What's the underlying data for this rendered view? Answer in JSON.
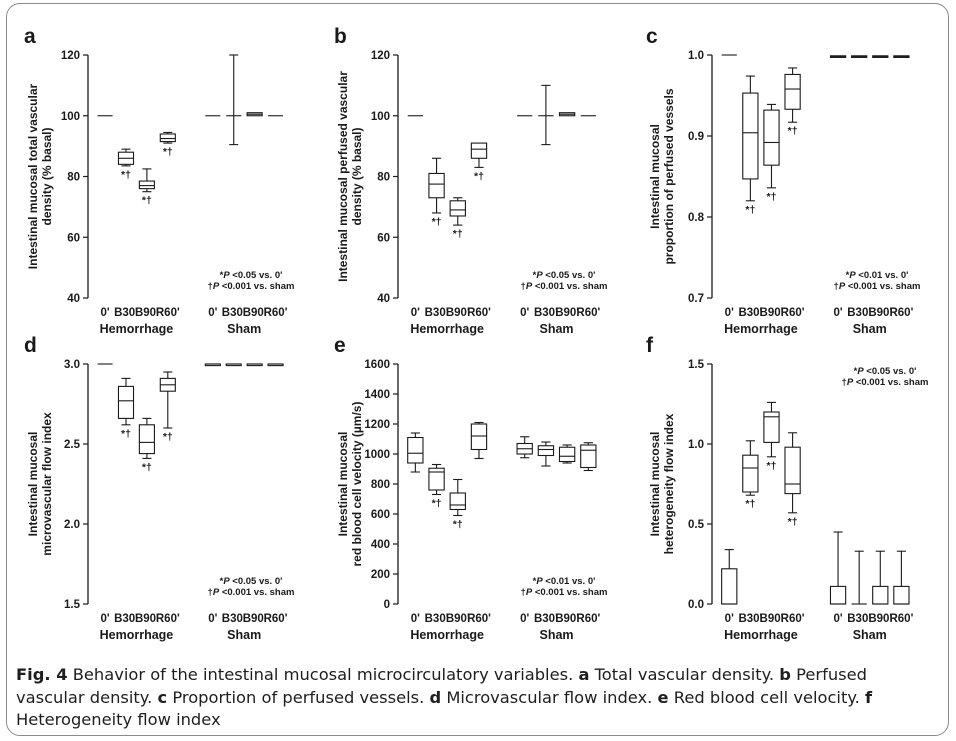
{
  "caption": {
    "fig_label": "Fig. 4",
    "intro": "Behavior of the intestinal mucosal microcirculatory variables.",
    "items": [
      {
        "letter": "a",
        "text": "Total vascular density."
      },
      {
        "letter": "b",
        "text": "Perfused vascular density."
      },
      {
        "letter": "c",
        "text": "Proportion of perfused vessels."
      },
      {
        "letter": "d",
        "text": "Microvascular flow index."
      },
      {
        "letter": "e",
        "text": "Red blood cell velocity."
      },
      {
        "letter": "f",
        "text": "Heterogeneity flow index"
      }
    ]
  },
  "chart_data": [
    {
      "panel": "a",
      "type": "box",
      "ylabel": [
        "Intestinal mucosal total vascular",
        "density (% basal)"
      ],
      "ylim": [
        40,
        120
      ],
      "yticks": [
        40,
        60,
        80,
        100,
        120
      ],
      "ytick_labels": [
        "40",
        "60",
        "80",
        "100",
        "120"
      ],
      "categories": [
        "0'",
        "B30'",
        "B90'",
        "R60'",
        "0'",
        "B30'",
        "B90'",
        "R60'"
      ],
      "groups": [
        "Hemorrhage",
        "Sham"
      ],
      "boxes": [
        {
          "min": 100,
          "q1": 100,
          "median": 100,
          "q3": 100,
          "max": 100
        },
        {
          "min": 83.5,
          "q1": 84,
          "median": 86,
          "q3": 88,
          "max": 89,
          "mark": "*†"
        },
        {
          "min": 75,
          "q1": 76,
          "median": 77,
          "q3": 78.5,
          "max": 82.5,
          "mark": "*†"
        },
        {
          "min": 91,
          "q1": 91.5,
          "median": 92.5,
          "q3": 94,
          "max": 94.5,
          "mark": "*†"
        },
        {
          "min": 100,
          "q1": 100,
          "median": 100,
          "q3": 100,
          "max": 100
        },
        {
          "min": 90.5,
          "q1": 100,
          "median": 100,
          "q3": 100,
          "max": 120
        },
        {
          "min": 100,
          "q1": 100,
          "median": 100.5,
          "q3": 101,
          "max": 101
        },
        {
          "min": 100,
          "q1": 100,
          "median": 100,
          "q3": 100,
          "max": 100
        }
      ],
      "annotation": [
        "*P <0.05 vs. 0'",
        "†P <0.001 vs. sham"
      ]
    },
    {
      "panel": "b",
      "type": "box",
      "ylabel": [
        "Intestinal mucosal perfused vascular",
        "density (% basal)"
      ],
      "ylim": [
        40,
        120
      ],
      "yticks": [
        40,
        60,
        80,
        100,
        120
      ],
      "ytick_labels": [
        "40",
        "60",
        "80",
        "100",
        "120"
      ],
      "categories": [
        "0'",
        "B30'",
        "B90'",
        "R60'",
        "0'",
        "B30'",
        "B90'",
        "R60'"
      ],
      "groups": [
        "Hemorrhage",
        "Sham"
      ],
      "boxes": [
        {
          "min": 100,
          "q1": 100,
          "median": 100,
          "q3": 100,
          "max": 100
        },
        {
          "min": 68,
          "q1": 73,
          "median": 77.5,
          "q3": 81,
          "max": 86,
          "mark": "*†"
        },
        {
          "min": 64,
          "q1": 67,
          "median": 69,
          "q3": 72,
          "max": 73,
          "mark": "*†"
        },
        {
          "min": 83,
          "q1": 86,
          "median": 89,
          "q3": 91,
          "max": 91,
          "mark": "*†"
        },
        {
          "min": 100,
          "q1": 100,
          "median": 100,
          "q3": 100,
          "max": 100
        },
        {
          "min": 90.5,
          "q1": 100,
          "median": 100,
          "q3": 100,
          "max": 110
        },
        {
          "min": 100,
          "q1": 100,
          "median": 100.5,
          "q3": 101,
          "max": 101
        },
        {
          "min": 100,
          "q1": 100,
          "median": 100,
          "q3": 100,
          "max": 100
        }
      ],
      "annotation": [
        "*P <0.05 vs. 0'",
        "†P <0.001 vs. sham"
      ]
    },
    {
      "panel": "c",
      "type": "box",
      "ylabel": [
        "Intestinal mucosal",
        "proportion of perfused vessels"
      ],
      "ylim": [
        0.7,
        1.0
      ],
      "yticks": [
        0.7,
        0.8,
        0.9,
        1.0
      ],
      "ytick_labels": [
        "0.7",
        "0.8",
        "0.9",
        "1.0"
      ],
      "categories": [
        "0'",
        "B30'",
        "B90'",
        "R60'",
        "0'",
        "B30'",
        "B90'",
        "R60'"
      ],
      "groups": [
        "Hemorrhage",
        "Sham"
      ],
      "boxes": [
        {
          "min": 1.0,
          "q1": 1.0,
          "median": 1.0,
          "q3": 1.0,
          "max": 1.0
        },
        {
          "min": 0.82,
          "q1": 0.847,
          "median": 0.904,
          "q3": 0.953,
          "max": 0.974,
          "mark": "*†"
        },
        {
          "min": 0.836,
          "q1": 0.864,
          "median": 0.892,
          "q3": 0.932,
          "max": 0.939,
          "mark": "*†"
        },
        {
          "min": 0.917,
          "q1": 0.933,
          "median": 0.958,
          "q3": 0.976,
          "max": 0.984,
          "mark": "*†"
        },
        {
          "min": 0.997,
          "q1": 0.997,
          "median": 0.998,
          "q3": 0.999,
          "max": 0.999
        },
        {
          "min": 0.997,
          "q1": 0.997,
          "median": 0.998,
          "q3": 0.999,
          "max": 0.999
        },
        {
          "min": 0.997,
          "q1": 0.997,
          "median": 0.998,
          "q3": 0.999,
          "max": 0.999
        },
        {
          "min": 0.997,
          "q1": 0.997,
          "median": 0.998,
          "q3": 0.999,
          "max": 0.999
        }
      ],
      "annotation": [
        "*P <0.01 vs. 0'",
        "†P <0.001 vs. sham"
      ]
    },
    {
      "panel": "d",
      "type": "box",
      "ylabel": [
        "Intestinal mucosal",
        "microvascular flow index"
      ],
      "ylim": [
        1.5,
        3.0
      ],
      "yticks": [
        1.5,
        2.0,
        2.5,
        3.0
      ],
      "ytick_labels": [
        "1.5",
        "2.0",
        "2.5",
        "3.0"
      ],
      "categories": [
        "0'",
        "B30'",
        "B90'",
        "R60'",
        "0'",
        "B30'",
        "B90'",
        "R60'"
      ],
      "groups": [
        "Hemorrhage",
        "Sham"
      ],
      "boxes": [
        {
          "min": 3.0,
          "q1": 3.0,
          "median": 3.0,
          "q3": 3.0,
          "max": 3.0
        },
        {
          "min": 2.62,
          "q1": 2.66,
          "median": 2.77,
          "q3": 2.86,
          "max": 2.91,
          "mark": "*†"
        },
        {
          "min": 2.41,
          "q1": 2.44,
          "median": 2.51,
          "q3": 2.62,
          "max": 2.66,
          "mark": "*†"
        },
        {
          "min": 2.6,
          "q1": 2.83,
          "median": 2.87,
          "q3": 2.91,
          "max": 2.95,
          "mark": "*†"
        },
        {
          "min": 2.99,
          "q1": 2.99,
          "median": 3.0,
          "q3": 3.0,
          "max": 3.0
        },
        {
          "min": 2.99,
          "q1": 2.99,
          "median": 3.0,
          "q3": 3.0,
          "max": 3.0
        },
        {
          "min": 2.99,
          "q1": 2.99,
          "median": 3.0,
          "q3": 3.0,
          "max": 3.0
        },
        {
          "min": 2.99,
          "q1": 2.99,
          "median": 3.0,
          "q3": 3.0,
          "max": 3.0
        }
      ],
      "annotation": [
        "*P <0.05 vs. 0'",
        "†P <0.001 vs. sham"
      ]
    },
    {
      "panel": "e",
      "type": "box",
      "ylabel": [
        "Intestinal mucosal",
        "red blood cell velocity (µm/s)"
      ],
      "ylim": [
        0,
        1600
      ],
      "yticks": [
        0,
        200,
        400,
        600,
        800,
        1000,
        1200,
        1400,
        1600
      ],
      "ytick_labels": [
        "0",
        "200",
        "400",
        "600",
        "800",
        "1000",
        "1200",
        "1400",
        "1600"
      ],
      "categories": [
        "0'",
        "B30'",
        "B90'",
        "R60'",
        "0'",
        "B30'",
        "B90'",
        "R60'"
      ],
      "groups": [
        "Hemorrhage",
        "Sham"
      ],
      "boxes": [
        {
          "min": 880,
          "q1": 940,
          "median": 1005,
          "q3": 1110,
          "max": 1140
        },
        {
          "min": 730,
          "q1": 760,
          "median": 880,
          "q3": 905,
          "max": 930,
          "mark": "*†"
        },
        {
          "min": 590,
          "q1": 630,
          "median": 660,
          "q3": 740,
          "max": 830,
          "mark": "*†"
        },
        {
          "min": 970,
          "q1": 1030,
          "median": 1120,
          "q3": 1200,
          "max": 1210
        },
        {
          "min": 975,
          "q1": 1000,
          "median": 1035,
          "q3": 1070,
          "max": 1115
        },
        {
          "min": 920,
          "q1": 990,
          "median": 1030,
          "q3": 1055,
          "max": 1080
        },
        {
          "min": 940,
          "q1": 950,
          "median": 985,
          "q3": 1045,
          "max": 1060
        },
        {
          "min": 890,
          "q1": 910,
          "median": 1025,
          "q3": 1060,
          "max": 1075
        }
      ],
      "annotation": [
        "*P <0.01 vs. 0'",
        "†P <0.001 vs. sham"
      ]
    },
    {
      "panel": "f",
      "type": "box",
      "ylabel": [
        "Intestinal mucosal",
        "heterogeneity flow index"
      ],
      "ylim": [
        0.0,
        1.5
      ],
      "yticks": [
        0.0,
        0.5,
        1.0,
        1.5
      ],
      "ytick_labels": [
        "0.0",
        "0.5",
        "1.0",
        "1.5"
      ],
      "categories": [
        "0'",
        "B30'",
        "B90'",
        "R60'",
        "0'",
        "B30'",
        "B90'",
        "R60'"
      ],
      "groups": [
        "Hemorrhage",
        "Sham"
      ],
      "boxes": [
        {
          "min": 0,
          "q1": 0,
          "median": 0,
          "q3": 0.22,
          "max": 0.34
        },
        {
          "min": 0.68,
          "q1": 0.7,
          "median": 0.85,
          "q3": 0.93,
          "max": 1.02,
          "mark": "*†"
        },
        {
          "min": 0.92,
          "q1": 1.01,
          "median": 1.17,
          "q3": 1.2,
          "max": 1.26,
          "mark": "*†"
        },
        {
          "min": 0.57,
          "q1": 0.69,
          "median": 0.75,
          "q3": 0.98,
          "max": 1.07,
          "mark": "*†"
        },
        {
          "min": 0,
          "q1": 0,
          "median": 0,
          "q3": 0.11,
          "max": 0.45
        },
        {
          "min": 0,
          "q1": 0,
          "median": 0,
          "q3": 0,
          "max": 0.33
        },
        {
          "min": 0,
          "q1": 0,
          "median": 0,
          "q3": 0.11,
          "max": 0.33
        },
        {
          "min": 0,
          "q1": 0,
          "median": 0,
          "q3": 0.11,
          "max": 0.33
        }
      ],
      "annotation": [
        "*P <0.05 vs. 0'",
        "†P <0.001 vs. sham"
      ]
    }
  ]
}
